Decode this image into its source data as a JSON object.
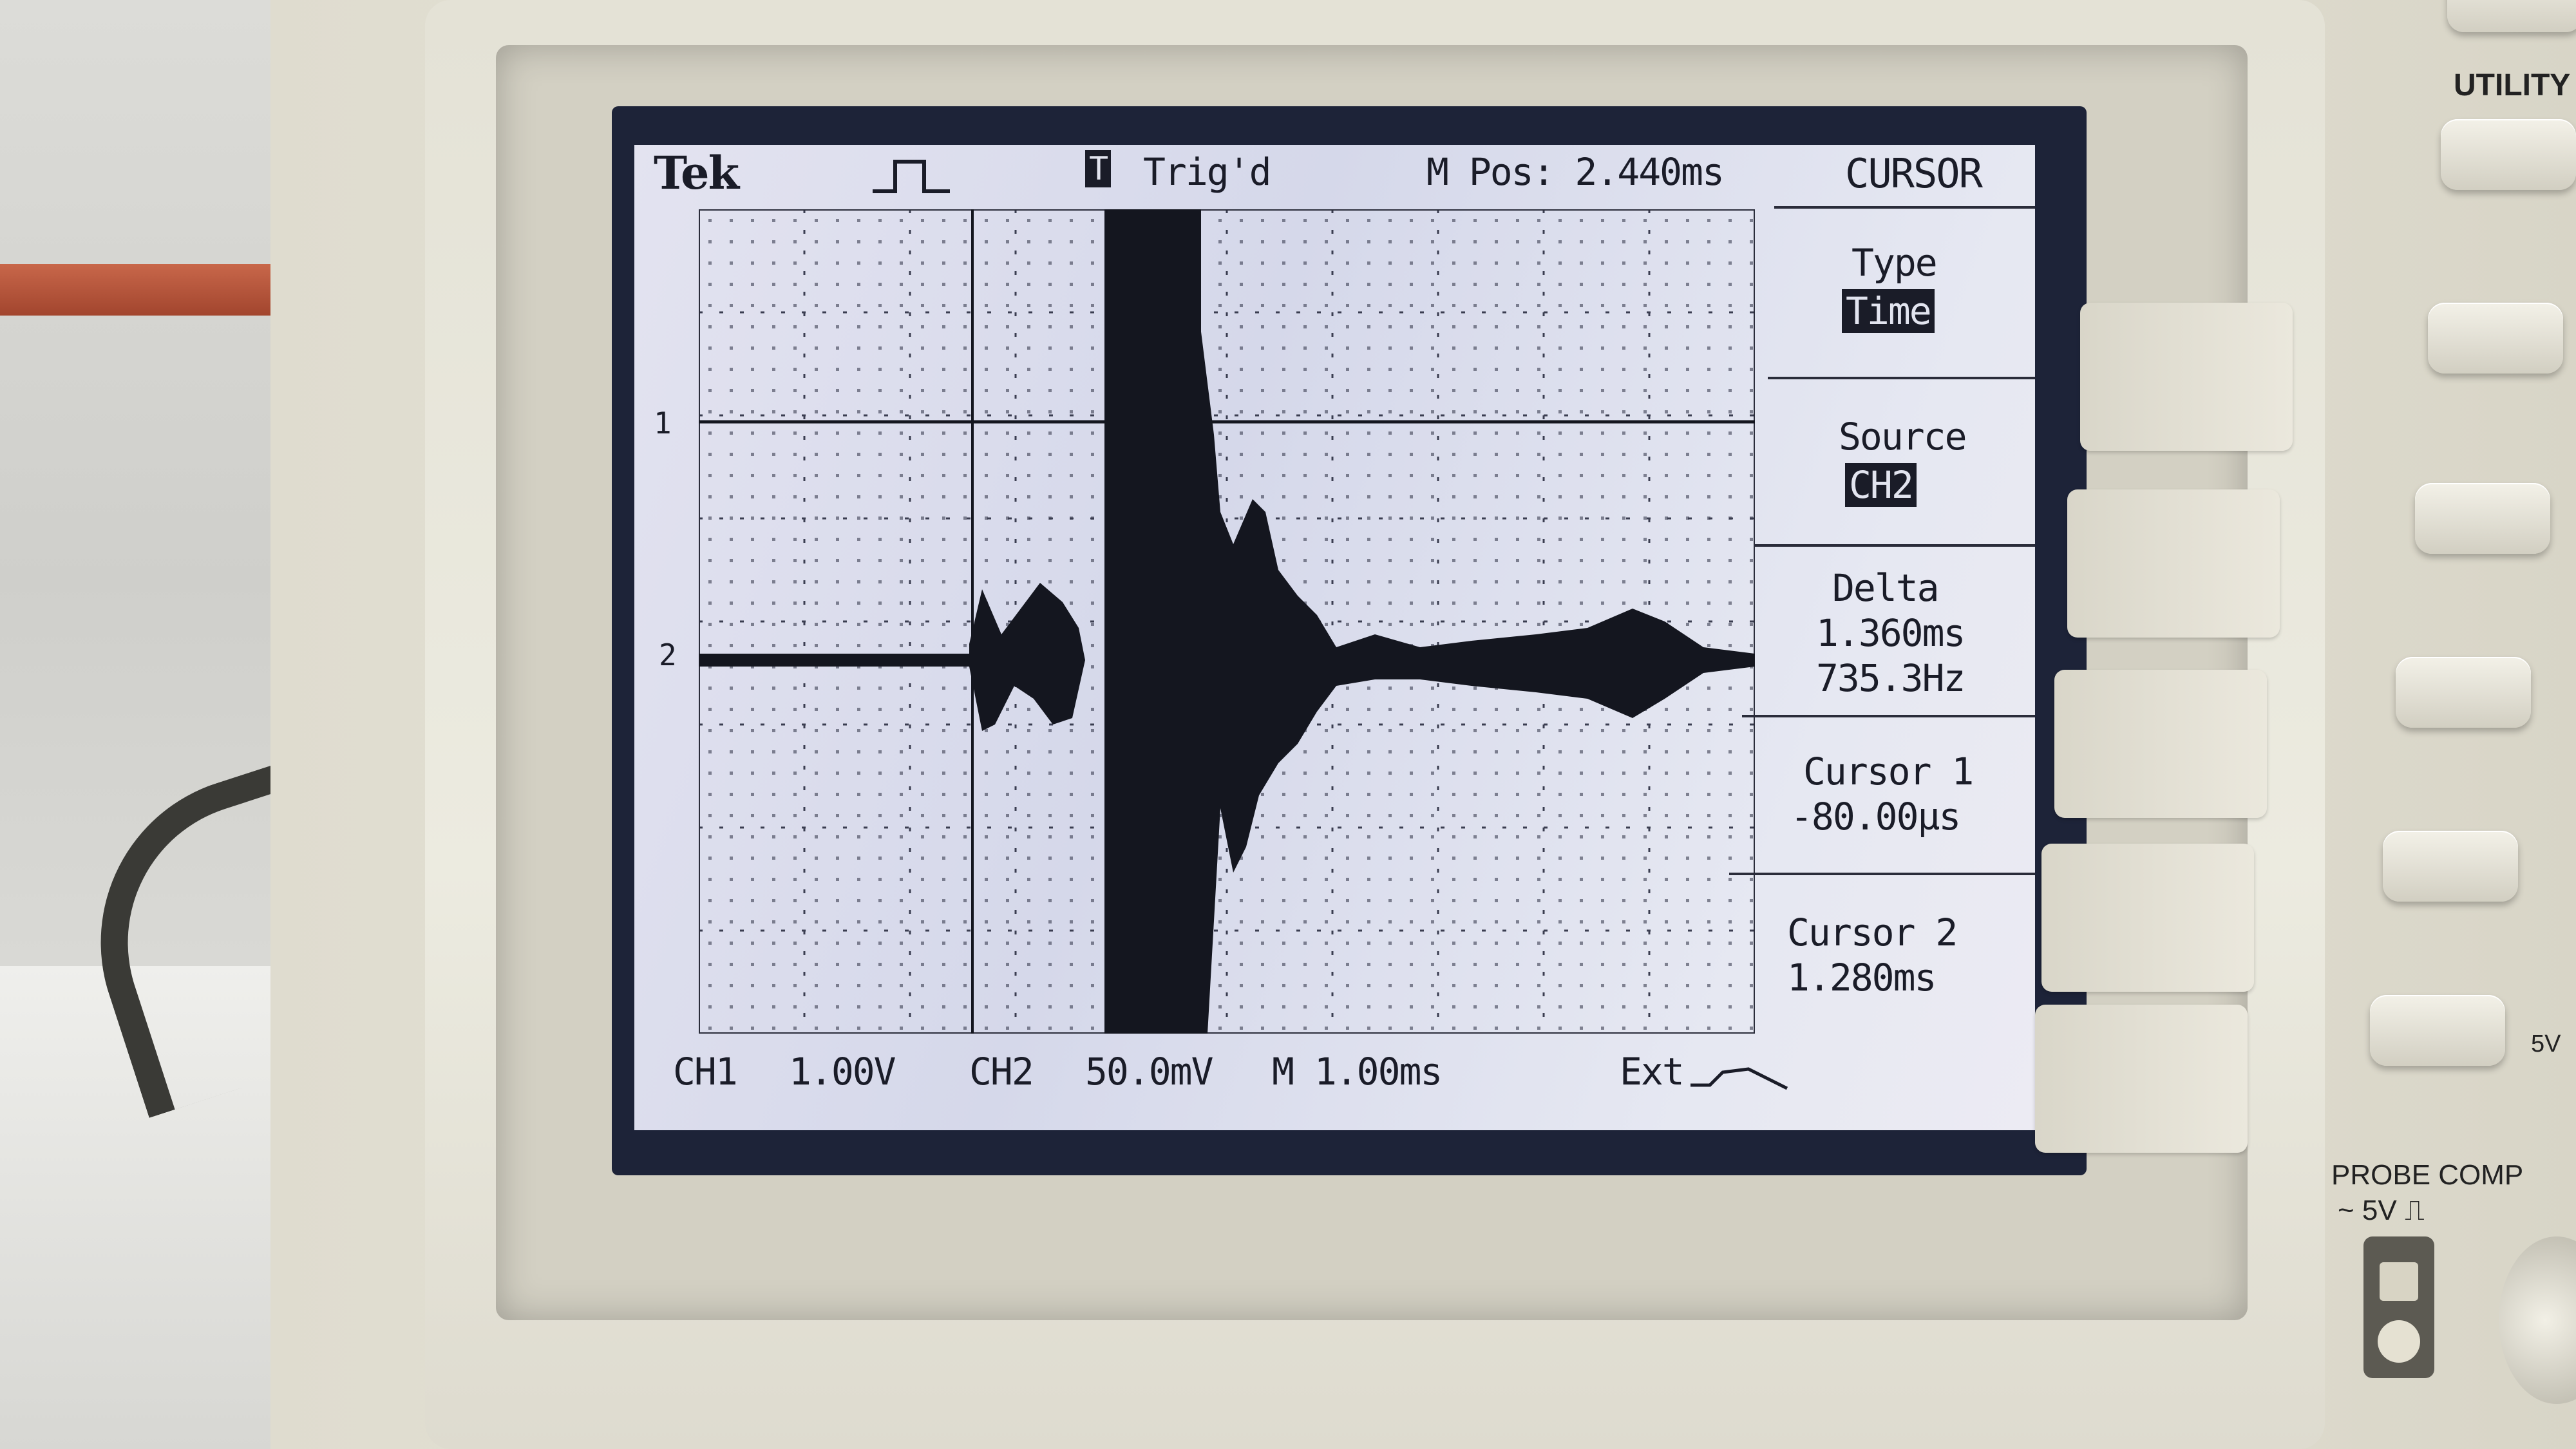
{
  "screen": {
    "brand": "Tek",
    "trigger_status": "Trig'd",
    "trigger_badge": "T",
    "m_pos": "M Pos: 2.440ms",
    "ch1_marker": "1",
    "ch2_marker": "2",
    "bottom": {
      "ch1_label": "CH1",
      "ch1_scale": "1.00V",
      "ch2_label": "CH2",
      "ch2_scale": "50.0mV",
      "timebase": "M 1.00ms",
      "trigger_source": "Ext"
    }
  },
  "menu": {
    "title": "CURSOR",
    "type_label": "Type",
    "type_value": "Time",
    "source_label": "Source",
    "source_value": "CH2",
    "delta_label": "Delta",
    "delta_time": "1.360ms",
    "delta_freq": "735.3Hz",
    "cursor1_label": "Cursor 1",
    "cursor1_value": "-80.00µs",
    "cursor2_label": "Cursor 2",
    "cursor2_value": "1.280ms"
  },
  "panel": {
    "utility_label": "UTILITY",
    "probe_comp_label": "PROBE COMP",
    "probe_comp_value": "~ 5V ⎍",
    "knob_label": "5V"
  },
  "colors": {
    "lcd_bg": "#dfe1ee",
    "trace": "#14161f",
    "bezel": "#e4e2d6"
  }
}
